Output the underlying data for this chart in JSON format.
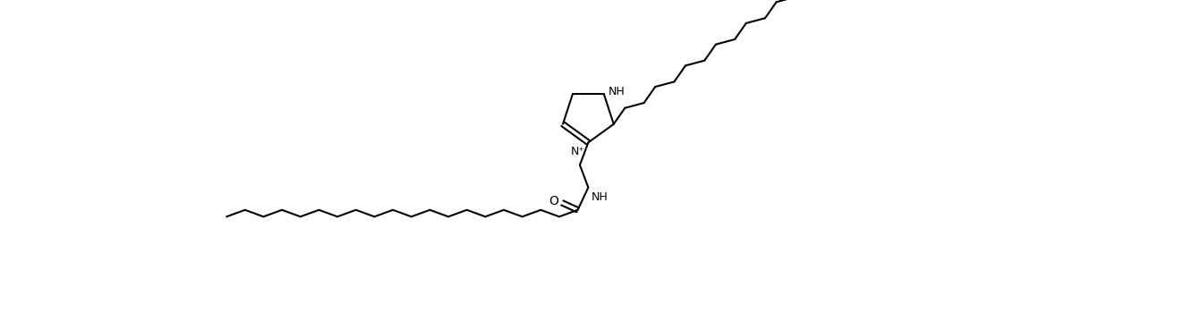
{
  "bg_color": "#ffffff",
  "line_color": "#000000",
  "line_width": 1.5,
  "figsize": [
    13.32,
    3.69
  ],
  "dpi": 100,
  "label_NH": "NH",
  "label_N_plus": "N⁺",
  "label_O": "O",
  "label_NH_amide": "NH",
  "font_size": 9,
  "ring_r": 0.38,
  "bl": 0.28,
  "xlim": [
    -0.5,
    13.32
  ],
  "ylim": [
    -1.5,
    3.2
  ]
}
